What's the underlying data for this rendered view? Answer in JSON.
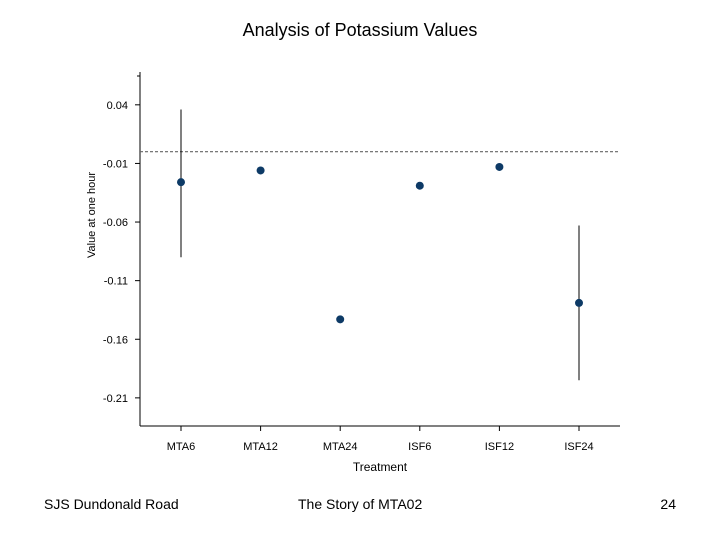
{
  "chart_data": {
    "type": "scatter",
    "title": "Analysis of Potassium Values",
    "xlabel": "Treatment",
    "ylabel": "Value at one hour",
    "categories": [
      "MTA6",
      "MTA12",
      "MTA24",
      "ISF6",
      "ISF12",
      "ISF24"
    ],
    "values": [
      -0.026,
      -0.016,
      -0.143,
      -0.029,
      -0.013,
      -0.129
    ],
    "error_bars": [
      {
        "low": -0.09,
        "high": 0.036
      },
      null,
      null,
      null,
      null,
      {
        "low": -0.195,
        "high": -0.063
      }
    ],
    "reference_line": 0.0,
    "yticks": [
      0.04,
      -0.01,
      -0.06,
      -0.11,
      -0.16,
      -0.21
    ],
    "ytick_labels": [
      "0.04",
      "-0.01",
      "-0.06",
      "-0.11",
      "-0.16",
      "-0.21"
    ],
    "ylim": [
      -0.234,
      0.068
    ],
    "grid": false,
    "point_color": "#0d3a66",
    "reference_color": "#666666"
  },
  "footer": {
    "left": "SJS Dundonald Road",
    "center": "The Story of MTA02",
    "page_number": "24"
  }
}
